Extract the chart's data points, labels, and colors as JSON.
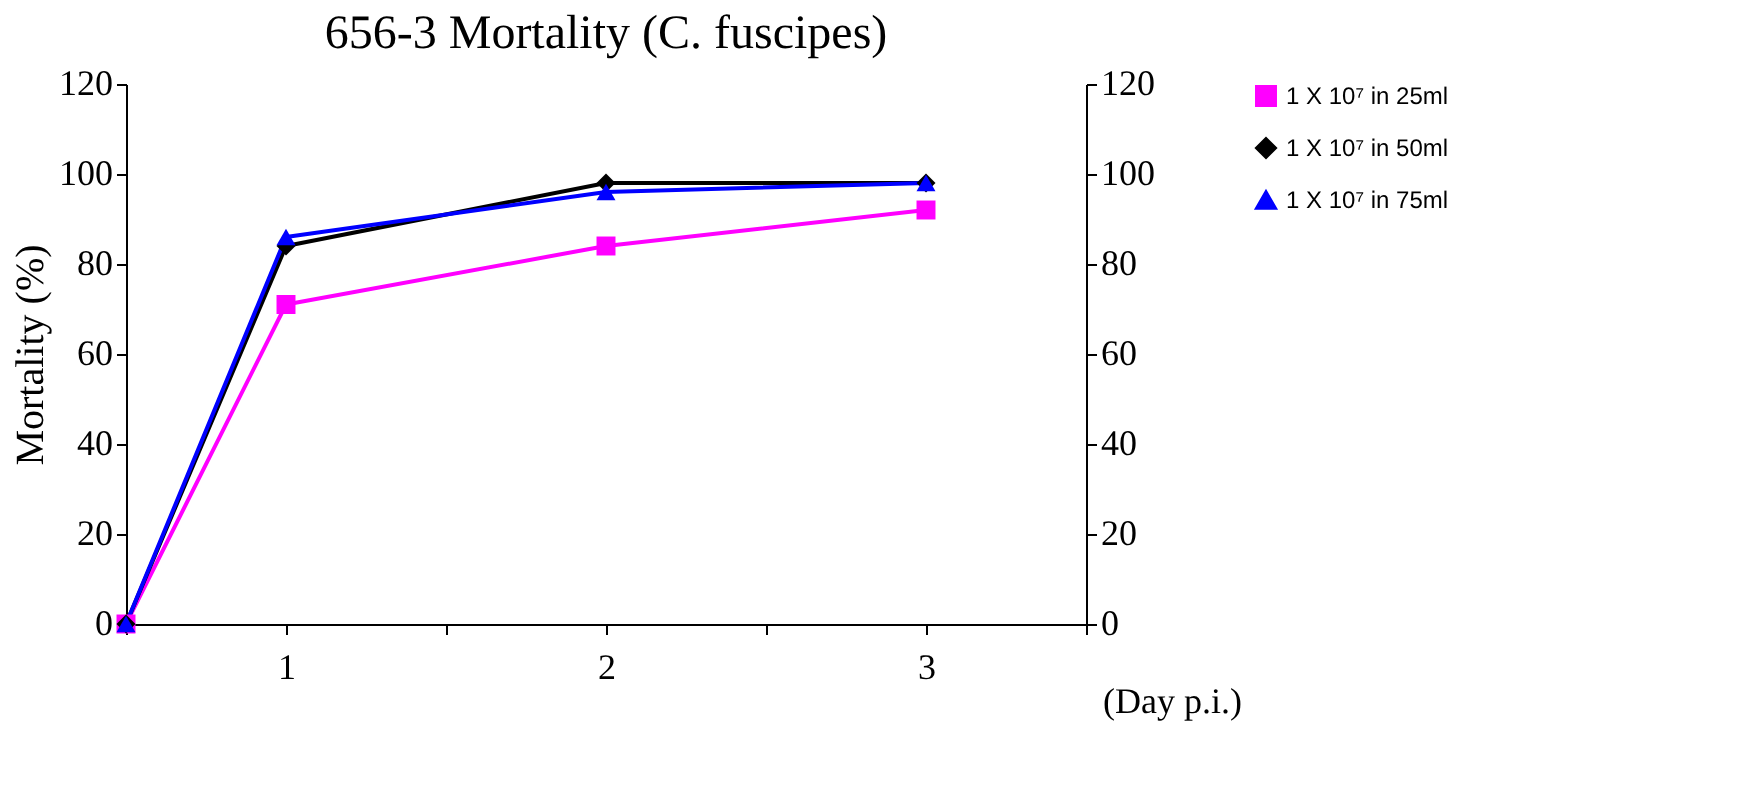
{
  "chart_data": {
    "type": "line",
    "title": "656-3 Mortality (C. fuscipes)",
    "ylabel": "Mortality (%)",
    "xlabel": "(Day p.i.)",
    "x": [
      0.5,
      1,
      2,
      3
    ],
    "xlim": [
      0.5,
      3.5
    ],
    "xticks": [
      {
        "value": 0.5,
        "label": null
      },
      1,
      {
        "value": 1.5,
        "label": null
      },
      2,
      {
        "value": 2.5,
        "label": null
      },
      3,
      {
        "value": 3.5,
        "label": null
      }
    ],
    "ylim": [
      0,
      120
    ],
    "yticks": [
      0,
      20,
      40,
      60,
      80,
      100,
      120
    ],
    "y2lim": [
      0,
      120
    ],
    "y2ticks": [
      0,
      20,
      40,
      60,
      80,
      100,
      120
    ],
    "grid": false,
    "legend": "right",
    "line_style": "solid",
    "series": [
      {
        "name": "1 X 10⁷ in 25ml",
        "color": "#ff00ff",
        "marker": "square",
        "values": [
          0,
          71,
          84,
          92
        ]
      },
      {
        "name": "1 X 10⁷ in 50ml",
        "color": "#000000",
        "marker": "diamond",
        "values": [
          0,
          84,
          98,
          98
        ]
      },
      {
        "name": "1 X 10⁷ in 75ml",
        "color": "#0000ff",
        "marker": "triangle",
        "values": [
          0,
          86,
          96,
          98
        ]
      }
    ]
  }
}
